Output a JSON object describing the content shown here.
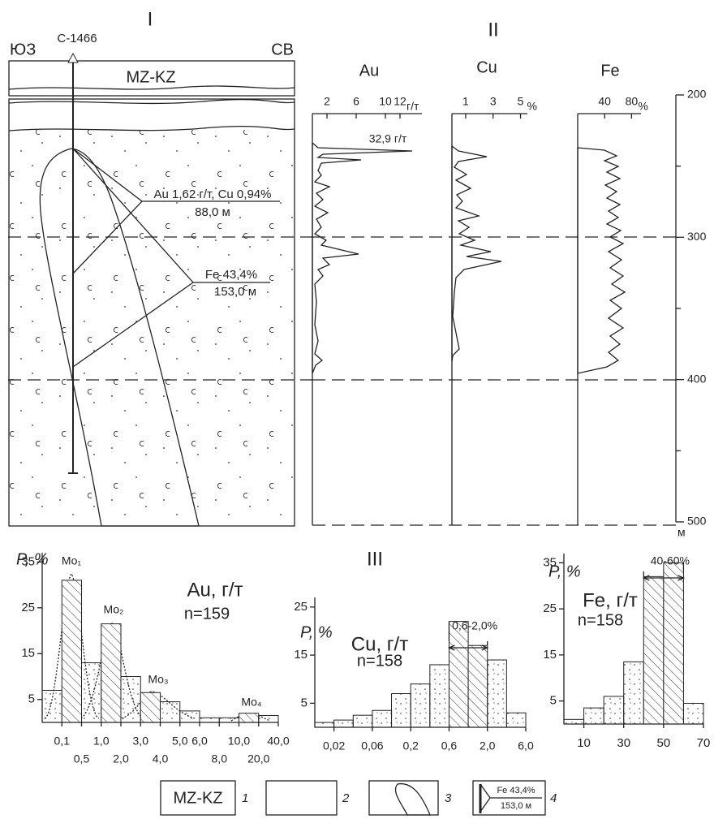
{
  "section": {
    "title": "I",
    "left_label": "ЮЗ",
    "right_label": "СВ",
    "well": "С-1466",
    "cover": "MZ-KZ",
    "callout1": [
      "Au 1,62 г/т, Cu 0,94%",
      "88,0 м"
    ],
    "callout2": [
      "Fe 43,4%",
      "153,0 м"
    ]
  },
  "profiles": {
    "title": "II",
    "depth_ticks": [
      200,
      300,
      400,
      500
    ],
    "depth_minor_ticks": [
      250,
      350,
      450
    ],
    "depth_lim": [
      200,
      500
    ],
    "depth_unit": "м",
    "panels": [
      {
        "name": "Au",
        "ticks": [
          2,
          6,
          10,
          12
        ],
        "xlim": [
          0,
          15
        ],
        "unit": "г/т",
        "note": "32,9 г/т"
      },
      {
        "name": "Cu",
        "ticks": [
          1,
          3,
          5
        ],
        "xlim": [
          0,
          5.5
        ],
        "unit": "%"
      },
      {
        "name": "Fe",
        "ticks": [
          40,
          80
        ],
        "xlim": [
          0,
          94
        ],
        "unit": "%"
      }
    ]
  },
  "histograms": {
    "title": "III",
    "charts": [
      {
        "type": "histogram",
        "ylabel": "P, %",
        "title": "Au, г/т",
        "n": "n=159",
        "bins": [
          null,
          "0,1",
          "0,5",
          "1,0",
          "2,0",
          "3,0",
          "4,0",
          "5,0",
          "6,0",
          "8,0",
          "10,0",
          "20,0",
          "40,0"
        ],
        "values": [
          7,
          31,
          13,
          21.5,
          10,
          6.5,
          4.5,
          2.5,
          1,
          1,
          2,
          1.5
        ],
        "hatched_bars": [
          1,
          3,
          5,
          10
        ],
        "ylim": [
          0,
          37
        ],
        "yticks": [
          5,
          15,
          25,
          35
        ],
        "modes": [
          "Mo₁",
          "Mo₂",
          "Mo₃",
          "Mo₄"
        ]
      },
      {
        "type": "histogram",
        "ylabel": "P, %",
        "title": "Cu, г/т",
        "n": "n=158",
        "bins": [
          null,
          "0,02",
          null,
          "0,06",
          null,
          "0,2",
          null,
          "0,6",
          null,
          "2,0",
          null,
          "6,0"
        ],
        "values": [
          1,
          1.5,
          2.5,
          3.5,
          7,
          9,
          13,
          22,
          17,
          14,
          3
        ],
        "hatched_bars": [
          7,
          8
        ],
        "ylim": [
          0,
          27
        ],
        "yticks": [
          5,
          15,
          25
        ],
        "range_label": "0,6-2,0%"
      },
      {
        "type": "histogram",
        "ylabel": "P, %",
        "title": "Fe, г/т",
        "n": "n=158",
        "bins": [
          0,
          10,
          20,
          30,
          40,
          50,
          60,
          70
        ],
        "xlim": [
          0,
          70
        ],
        "xticks": [
          10,
          30,
          50,
          70
        ],
        "values": [
          1,
          3.5,
          6,
          13.5,
          32,
          35,
          4.5
        ],
        "hatched_bars": [
          4,
          5
        ],
        "ylim": [
          0,
          37
        ],
        "yticks": [
          5,
          15,
          25,
          35
        ],
        "range_label": "40-60%"
      }
    ]
  },
  "legend": [
    {
      "symbol": "MZ-KZ",
      "number": "1"
    },
    {
      "number": "2"
    },
    {
      "number": "3"
    },
    {
      "number": "4",
      "sample": [
        "Fe 43,4%",
        "153,0 м"
      ]
    }
  ]
}
